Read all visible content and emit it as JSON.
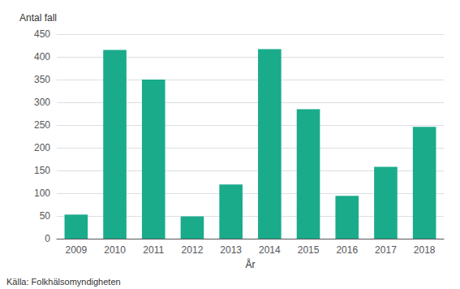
{
  "chart_data": {
    "type": "bar",
    "categories": [
      "2009",
      "2010",
      "2011",
      "2012",
      "2013",
      "2014",
      "2015",
      "2016",
      "2017",
      "2018"
    ],
    "values": [
      53,
      415,
      350,
      49,
      119,
      417,
      285,
      94,
      158,
      246
    ],
    "color": "#1aab8b",
    "xlabel": "År",
    "ylabel": "Antal fall",
    "ylim": [
      0,
      450
    ],
    "yticks": [
      0,
      50,
      100,
      150,
      200,
      250,
      300,
      350,
      400,
      450
    ],
    "grid": true,
    "annotations": [
      "Källa: Folkhälsomyndigheten"
    ]
  }
}
